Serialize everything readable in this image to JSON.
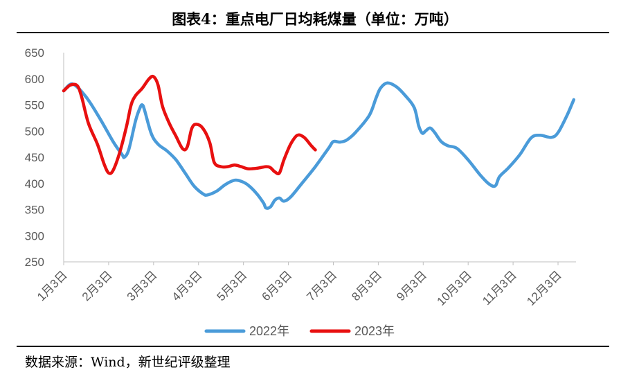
{
  "header": {
    "title": "图表4：重点电厂日均耗煤量（单位：万吨）"
  },
  "footer": {
    "source": "数据来源：Wind，新世纪评级整理"
  },
  "chart_data": {
    "type": "line",
    "title": "图表4：重点电厂日均耗煤量（单位：万吨）",
    "ylim": [
      250,
      650
    ],
    "yticks": [
      250,
      300,
      350,
      400,
      450,
      500,
      550,
      600,
      650
    ],
    "x_tick_labels": [
      "1月3日",
      "2月3日",
      "3月3日",
      "4月3日",
      "5月3日",
      "6月3日",
      "7月3日",
      "8月3日",
      "9月3日",
      "10月3日",
      "11月3日",
      "12月3日"
    ],
    "x_domain": [
      0,
      11.4
    ],
    "grid": false,
    "legend_position": "bottom",
    "series": [
      {
        "name": "2022年",
        "color": "#4A9BD9",
        "points": [
          [
            0,
            577
          ],
          [
            0.2,
            590
          ],
          [
            0.5,
            565
          ],
          [
            0.8,
            525
          ],
          [
            1.1,
            480
          ],
          [
            1.3,
            455
          ],
          [
            1.35,
            450
          ],
          [
            1.45,
            465
          ],
          [
            1.6,
            520
          ],
          [
            1.7,
            545
          ],
          [
            1.75,
            550
          ],
          [
            1.8,
            540
          ],
          [
            1.95,
            495
          ],
          [
            2.1,
            475
          ],
          [
            2.3,
            462
          ],
          [
            2.5,
            445
          ],
          [
            2.7,
            420
          ],
          [
            2.9,
            395
          ],
          [
            3.1,
            380
          ],
          [
            3.2,
            378
          ],
          [
            3.4,
            385
          ],
          [
            3.6,
            398
          ],
          [
            3.8,
            406
          ],
          [
            3.95,
            404
          ],
          [
            4.1,
            397
          ],
          [
            4.3,
            380
          ],
          [
            4.45,
            362
          ],
          [
            4.5,
            353
          ],
          [
            4.6,
            355
          ],
          [
            4.7,
            368
          ],
          [
            4.8,
            372
          ],
          [
            4.9,
            366
          ],
          [
            5.05,
            374
          ],
          [
            5.3,
            400
          ],
          [
            5.6,
            432
          ],
          [
            5.9,
            468
          ],
          [
            6.0,
            480
          ],
          [
            6.15,
            479
          ],
          [
            6.3,
            483
          ],
          [
            6.5,
            498
          ],
          [
            6.8,
            530
          ],
          [
            6.95,
            563
          ],
          [
            7.05,
            582
          ],
          [
            7.2,
            592
          ],
          [
            7.4,
            585
          ],
          [
            7.6,
            568
          ],
          [
            7.8,
            545
          ],
          [
            7.9,
            510
          ],
          [
            7.98,
            496
          ],
          [
            8.05,
            500
          ],
          [
            8.15,
            506
          ],
          [
            8.25,
            498
          ],
          [
            8.4,
            480
          ],
          [
            8.55,
            472
          ],
          [
            8.75,
            467
          ],
          [
            9.0,
            445
          ],
          [
            9.25,
            418
          ],
          [
            9.45,
            400
          ],
          [
            9.6,
            395
          ],
          [
            9.7,
            413
          ],
          [
            9.9,
            430
          ],
          [
            10.15,
            455
          ],
          [
            10.4,
            487
          ],
          [
            10.6,
            492
          ],
          [
            10.85,
            488
          ],
          [
            11.0,
            497
          ],
          [
            11.2,
            530
          ],
          [
            11.35,
            560
          ]
        ]
      },
      {
        "name": "2023年",
        "color": "#E81010",
        "points": [
          [
            0,
            577
          ],
          [
            0.15,
            588
          ],
          [
            0.3,
            587
          ],
          [
            0.4,
            565
          ],
          [
            0.55,
            515
          ],
          [
            0.75,
            475
          ],
          [
            0.9,
            437
          ],
          [
            1.0,
            420
          ],
          [
            1.1,
            425
          ],
          [
            1.25,
            460
          ],
          [
            1.4,
            510
          ],
          [
            1.5,
            550
          ],
          [
            1.6,
            568
          ],
          [
            1.75,
            582
          ],
          [
            1.9,
            600
          ],
          [
            2.0,
            604
          ],
          [
            2.1,
            588
          ],
          [
            2.2,
            547
          ],
          [
            2.35,
            515
          ],
          [
            2.5,
            490
          ],
          [
            2.65,
            466
          ],
          [
            2.75,
            470
          ],
          [
            2.85,
            505
          ],
          [
            2.95,
            513
          ],
          [
            3.1,
            505
          ],
          [
            3.25,
            478
          ],
          [
            3.35,
            440
          ],
          [
            3.5,
            432
          ],
          [
            3.65,
            432
          ],
          [
            3.8,
            435
          ],
          [
            3.95,
            432
          ],
          [
            4.1,
            428
          ],
          [
            4.3,
            429
          ],
          [
            4.5,
            432
          ],
          [
            4.6,
            430
          ],
          [
            4.7,
            422
          ],
          [
            4.8,
            420
          ],
          [
            4.9,
            445
          ],
          [
            5.05,
            475
          ],
          [
            5.2,
            492
          ],
          [
            5.35,
            488
          ],
          [
            5.5,
            473
          ],
          [
            5.6,
            464
          ]
        ]
      }
    ]
  }
}
